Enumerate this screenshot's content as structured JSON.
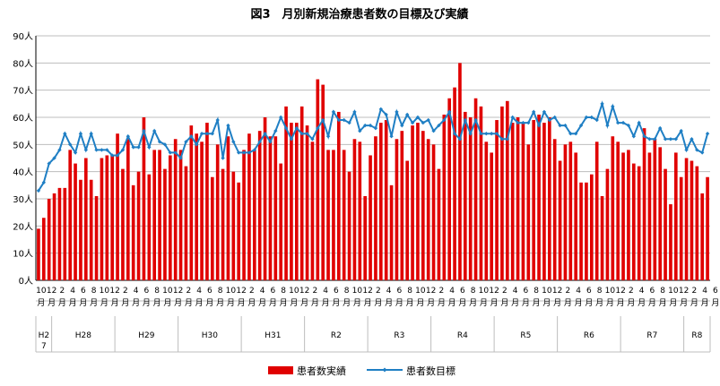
{
  "chart_data": {
    "type": "bar",
    "title": "図3　月別新規治療患者数の目標及び実績",
    "y_unit": "人",
    "ylim": [
      0,
      90
    ],
    "yticks": [
      0,
      10,
      20,
      30,
      40,
      50,
      60,
      70,
      80,
      90
    ],
    "grid": "horizontal",
    "legend_position": "bottom",
    "series": [
      {
        "name": "患者数実績",
        "type": "bar",
        "color": "#e00000",
        "values": [
          19,
          23,
          30,
          32,
          34,
          34,
          48,
          43,
          37,
          45,
          37,
          31,
          45,
          46,
          46,
          54,
          41,
          52,
          35,
          40,
          60,
          39,
          48,
          48,
          41,
          46,
          52,
          48,
          42,
          57,
          54,
          51,
          58,
          38,
          50,
          41,
          53,
          40,
          36,
          48,
          54,
          48,
          55,
          60,
          53,
          53,
          43,
          64,
          58,
          58,
          64,
          57,
          51,
          74,
          72,
          48,
          48,
          62,
          48,
          40,
          52,
          51,
          31,
          46,
          53,
          58,
          59,
          35,
          52,
          55,
          44,
          57,
          58,
          55,
          52,
          50,
          41,
          61,
          67,
          71,
          80,
          62,
          60,
          67,
          64,
          51,
          47,
          59,
          64,
          66,
          58,
          60,
          58,
          50,
          59,
          61,
          58,
          60,
          52,
          44,
          50,
          51,
          47,
          36,
          36,
          39,
          51,
          31,
          41,
          53,
          51,
          47,
          48,
          43,
          42,
          56,
          47,
          52,
          49,
          41,
          28,
          47,
          38,
          45,
          44,
          42,
          32,
          38
        ]
      },
      {
        "name": "患者数目標",
        "type": "line",
        "color": "#1f7fc4",
        "values": [
          33,
          36,
          43,
          45,
          48,
          54,
          50,
          47,
          54,
          48,
          54,
          48,
          48,
          48,
          46,
          46,
          48,
          53,
          49,
          49,
          55,
          49,
          55,
          51,
          50,
          47,
          47,
          45,
          51,
          53,
          50,
          54,
          54,
          54,
          59,
          45,
          57,
          51,
          47,
          47,
          47,
          48,
          51,
          54,
          51,
          55,
          60,
          56,
          52,
          56,
          54,
          54,
          52,
          56,
          59,
          53,
          62,
          59,
          59,
          58,
          62,
          55,
          57,
          57,
          56,
          63,
          61,
          53,
          62,
          57,
          61,
          58,
          60,
          58,
          59,
          55,
          57,
          59,
          62,
          54,
          52,
          59,
          54,
          59,
          54,
          54,
          54,
          54,
          52,
          52,
          60,
          58,
          58,
          58,
          62,
          57,
          62,
          59,
          60,
          57,
          57,
          54,
          54,
          57,
          60,
          60,
          59,
          65,
          57,
          64,
          58,
          58,
          57,
          53,
          58,
          53,
          52,
          52,
          56,
          52,
          52,
          52,
          55,
          48,
          52,
          48,
          47,
          54
        ]
      }
    ],
    "x_tick_labels": [
      "10",
      "12",
      "2",
      "4",
      "6",
      "8",
      "10",
      "12",
      "2",
      "4",
      "6",
      "8",
      "10",
      "12",
      "2",
      "4",
      "6",
      "8",
      "10",
      "12",
      "2",
      "4",
      "6",
      "8",
      "10",
      "12",
      "2",
      "4",
      "6",
      "8",
      "10",
      "12",
      "2",
      "4",
      "6",
      "8",
      "10",
      "12",
      "2",
      "4",
      "6",
      "8",
      "10",
      "12",
      "2",
      "4",
      "6",
      "8",
      "10",
      "12",
      "2",
      "4",
      "6",
      "8",
      "10",
      "12",
      "2",
      "4",
      "6",
      "8",
      "10",
      "12",
      "2",
      "4",
      "6",
      "8",
      "10",
      "12",
      "2"
    ],
    "x_tick_suffix": "月",
    "eras": [
      "H27",
      "H28",
      "H29",
      "H30",
      "H31",
      "R2",
      "R3",
      "R4",
      "R5",
      "R6",
      "R7",
      "R8"
    ]
  }
}
